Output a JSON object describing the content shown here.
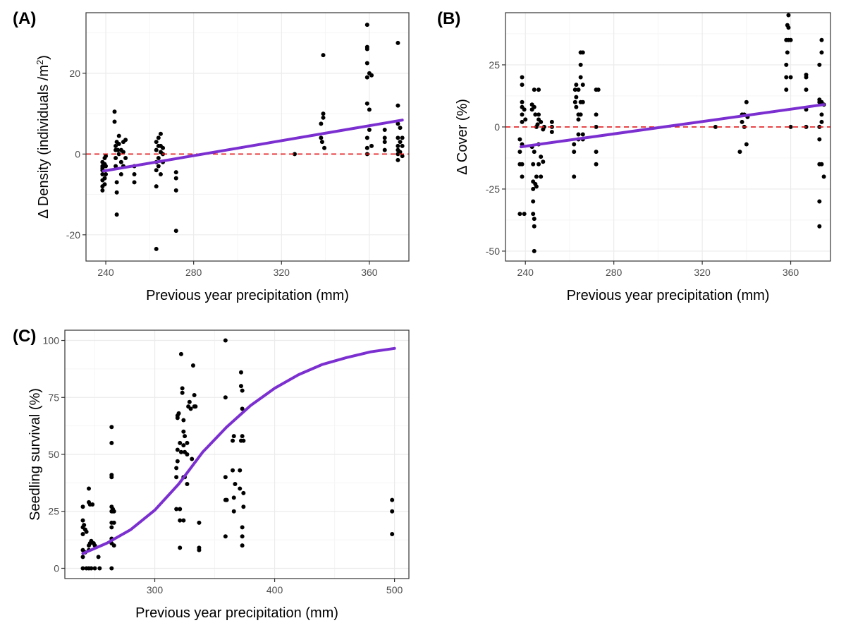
{
  "figure": {
    "panels": [
      "(A)",
      "(B)",
      "(C)"
    ]
  },
  "colors": {
    "points": "#000000",
    "fit_line": "#7b2fd0",
    "reference_line": "#e31a1c",
    "grid_major": "#ebebeb",
    "grid_minor": "#f5f5f5",
    "panel_border": "#333333"
  },
  "chart_data": [
    {
      "panel": "(A)",
      "type": "scatter",
      "xlabel": "Previous year precipitation (mm)",
      "ylabel_parts": [
        "Δ Density (individuals /m",
        "2",
        ")"
      ],
      "xlim": [
        231,
        378
      ],
      "ylim": [
        -26.5,
        35
      ],
      "xticks": [
        240,
        280,
        320,
        360
      ],
      "yticks": [
        -20,
        0,
        20
      ],
      "grid": true,
      "reference_line_y": 0,
      "fit_line": [
        [
          239,
          -4.2
        ],
        [
          375,
          8.4
        ]
      ],
      "points": [
        [
          238.5,
          -2
        ],
        [
          238.5,
          -3
        ],
        [
          238.5,
          -4
        ],
        [
          238.5,
          -5
        ],
        [
          238.5,
          -6.5
        ],
        [
          238.5,
          -8
        ],
        [
          238.5,
          -9
        ],
        [
          238.5,
          -3.5
        ],
        [
          239.5,
          -1
        ],
        [
          239.5,
          -2.5
        ],
        [
          239.5,
          -6
        ],
        [
          239.5,
          -7.5
        ],
        [
          240,
          -0.5
        ],
        [
          240,
          -3
        ],
        [
          240,
          -5
        ],
        [
          244,
          10.5
        ],
        [
          244,
          8
        ],
        [
          244.5,
          2
        ],
        [
          244.5,
          1
        ],
        [
          244.5,
          -1
        ],
        [
          244.5,
          -3
        ],
        [
          245,
          3
        ],
        [
          245,
          -7
        ],
        [
          245,
          -9.5
        ],
        [
          245,
          -15
        ],
        [
          245.5,
          1
        ],
        [
          246,
          4.5
        ],
        [
          246,
          2.5
        ],
        [
          246,
          0
        ],
        [
          247,
          1
        ],
        [
          247,
          -2
        ],
        [
          247,
          -5
        ],
        [
          248,
          3
        ],
        [
          248,
          0.5
        ],
        [
          248,
          -3
        ],
        [
          249,
          3.5
        ],
        [
          249,
          -1
        ],
        [
          253,
          -3
        ],
        [
          253,
          -5
        ],
        [
          253,
          -7
        ],
        [
          263,
          3
        ],
        [
          263,
          1
        ],
        [
          263,
          -2
        ],
        [
          263,
          -4
        ],
        [
          263,
          -8
        ],
        [
          263,
          -23.5
        ],
        [
          264,
          4
        ],
        [
          264,
          2
        ],
        [
          264,
          -1
        ],
        [
          264,
          -3
        ],
        [
          265,
          5
        ],
        [
          265,
          2
        ],
        [
          265,
          0.5
        ],
        [
          265,
          -5
        ],
        [
          266,
          1.5
        ],
        [
          266,
          0
        ],
        [
          266,
          -2
        ],
        [
          272,
          -4.5
        ],
        [
          272,
          -6
        ],
        [
          272,
          -9
        ],
        [
          272,
          -19
        ],
        [
          326,
          0
        ],
        [
          338,
          7.5
        ],
        [
          338,
          4
        ],
        [
          338.5,
          3
        ],
        [
          339,
          24.5
        ],
        [
          339,
          10
        ],
        [
          339,
          9
        ],
        [
          339.5,
          1.5
        ],
        [
          359,
          32
        ],
        [
          359,
          26.5
        ],
        [
          359,
          26
        ],
        [
          359,
          22.5
        ],
        [
          359,
          19
        ],
        [
          359,
          12.5
        ],
        [
          359,
          4
        ],
        [
          359,
          1.5
        ],
        [
          359,
          0
        ],
        [
          360,
          20
        ],
        [
          360,
          11
        ],
        [
          360,
          6
        ],
        [
          361,
          19.5
        ],
        [
          361,
          2
        ],
        [
          367,
          6
        ],
        [
          367,
          4
        ],
        [
          367,
          3
        ],
        [
          367,
          1
        ],
        [
          373,
          27.5
        ],
        [
          373,
          12
        ],
        [
          373,
          7.5
        ],
        [
          373,
          4
        ],
        [
          373,
          2
        ],
        [
          373,
          1
        ],
        [
          373,
          0
        ],
        [
          373,
          -1.5
        ],
        [
          374,
          6.5
        ],
        [
          374,
          3
        ],
        [
          374,
          0.5
        ],
        [
          375,
          4
        ],
        [
          375,
          2
        ],
        [
          375,
          -0.5
        ]
      ]
    },
    {
      "panel": "(B)",
      "type": "scatter",
      "xlabel": "Previous year precipitation (mm)",
      "ylabel": "Δ Cover (%)",
      "xlim": [
        231,
        378
      ],
      "ylim": [
        -54,
        46
      ],
      "xticks": [
        240,
        280,
        320,
        360
      ],
      "yticks": [
        -50,
        -25,
        0,
        25
      ],
      "grid": true,
      "reference_line_y": 0,
      "fit_line": [
        [
          238,
          -8
        ],
        [
          375,
          9
        ]
      ],
      "points": [
        [
          237.5,
          -5
        ],
        [
          237.5,
          -10
        ],
        [
          237.5,
          -15
        ],
        [
          237.5,
          -35
        ],
        [
          238.5,
          20
        ],
        [
          238.5,
          17
        ],
        [
          238.5,
          10
        ],
        [
          238.5,
          8
        ],
        [
          238.5,
          5
        ],
        [
          238.5,
          2
        ],
        [
          238.5,
          -7
        ],
        [
          238.5,
          -15
        ],
        [
          238.5,
          -20
        ],
        [
          239.5,
          -35
        ],
        [
          239.5,
          7
        ],
        [
          240,
          3
        ],
        [
          243,
          9
        ],
        [
          243,
          7
        ],
        [
          243,
          -8
        ],
        [
          243.5,
          -15
        ],
        [
          243.5,
          -22
        ],
        [
          243.5,
          -25
        ],
        [
          243.5,
          -30
        ],
        [
          243.5,
          -35
        ],
        [
          244,
          15
        ],
        [
          244,
          8
        ],
        [
          244,
          -10
        ],
        [
          244,
          -37
        ],
        [
          244,
          -40
        ],
        [
          244,
          -50
        ],
        [
          244.5,
          5
        ],
        [
          244.5,
          -23
        ],
        [
          245,
          0
        ],
        [
          245,
          -24
        ],
        [
          245,
          -20
        ],
        [
          245.5,
          1
        ],
        [
          246,
          15
        ],
        [
          246,
          5
        ],
        [
          246,
          3
        ],
        [
          246,
          -7
        ],
        [
          246,
          -15
        ],
        [
          247,
          2
        ],
        [
          247,
          -12
        ],
        [
          247,
          -20
        ],
        [
          248,
          -1
        ],
        [
          248,
          -14
        ],
        [
          248.5,
          0
        ],
        [
          252,
          2
        ],
        [
          252,
          0
        ],
        [
          252,
          -2
        ],
        [
          262,
          -20
        ],
        [
          262,
          -7
        ],
        [
          262,
          -10
        ],
        [
          262.5,
          15
        ],
        [
          262.5,
          10
        ],
        [
          263,
          17
        ],
        [
          263,
          12
        ],
        [
          263,
          8
        ],
        [
          264,
          15
        ],
        [
          264,
          5
        ],
        [
          264,
          3
        ],
        [
          264,
          -3
        ],
        [
          264,
          -5
        ],
        [
          265,
          30
        ],
        [
          265,
          25
        ],
        [
          265,
          20
        ],
        [
          265,
          10
        ],
        [
          265,
          5
        ],
        [
          266,
          30
        ],
        [
          266,
          17
        ],
        [
          266,
          10
        ],
        [
          266,
          -3
        ],
        [
          266,
          -5
        ],
        [
          272,
          15
        ],
        [
          272,
          5
        ],
        [
          272,
          0
        ],
        [
          272,
          -10
        ],
        [
          272,
          -15
        ],
        [
          273,
          15
        ],
        [
          326,
          0
        ],
        [
          337,
          -10
        ],
        [
          338,
          5
        ],
        [
          338,
          2
        ],
        [
          339,
          5
        ],
        [
          339,
          0
        ],
        [
          340,
          10
        ],
        [
          340,
          -7
        ],
        [
          340.5,
          4
        ],
        [
          358,
          15
        ],
        [
          358,
          20
        ],
        [
          358,
          25
        ],
        [
          358,
          35
        ],
        [
          358.5,
          41
        ],
        [
          358.5,
          30
        ],
        [
          359,
          45
        ],
        [
          359,
          40
        ],
        [
          359,
          35
        ],
        [
          360,
          35
        ],
        [
          360,
          20
        ],
        [
          360,
          0
        ],
        [
          367,
          21
        ],
        [
          367,
          20
        ],
        [
          367,
          15
        ],
        [
          367,
          7
        ],
        [
          367,
          0
        ],
        [
          373,
          25
        ],
        [
          373,
          11
        ],
        [
          373,
          10
        ],
        [
          373,
          0
        ],
        [
          373,
          -5
        ],
        [
          373,
          -15
        ],
        [
          373,
          -30
        ],
        [
          373,
          -40
        ],
        [
          374,
          35
        ],
        [
          374,
          30
        ],
        [
          374,
          10
        ],
        [
          374,
          5
        ],
        [
          374,
          2
        ],
        [
          374,
          -15
        ],
        [
          375,
          9
        ],
        [
          375,
          -20
        ]
      ]
    },
    {
      "panel": "(C)",
      "type": "scatter",
      "xlabel": "Previous year precipitation (mm)",
      "ylabel": "Seedling survival (%)",
      "xlim": [
        225,
        512
      ],
      "ylim": [
        -4.5,
        104.5
      ],
      "xticks": [
        300,
        400,
        500
      ],
      "yticks": [
        0,
        25,
        50,
        75,
        100
      ],
      "grid": true,
      "fit_curve": [
        [
          240,
          6.5
        ],
        [
          260,
          11
        ],
        [
          280,
          17
        ],
        [
          300,
          25.5
        ],
        [
          320,
          37
        ],
        [
          340,
          51
        ],
        [
          360,
          62
        ],
        [
          380,
          71.5
        ],
        [
          400,
          79
        ],
        [
          420,
          85
        ],
        [
          440,
          89.5
        ],
        [
          460,
          92.5
        ],
        [
          480,
          95
        ],
        [
          500,
          96.5
        ]
      ],
      "points": [
        [
          240,
          27
        ],
        [
          240,
          21
        ],
        [
          240,
          18
        ],
        [
          240,
          15
        ],
        [
          240,
          8
        ],
        [
          240,
          5
        ],
        [
          240,
          0
        ],
        [
          241,
          19
        ],
        [
          242,
          17
        ],
        [
          242,
          7
        ],
        [
          243,
          16
        ],
        [
          243,
          0
        ],
        [
          245,
          35
        ],
        [
          245,
          29
        ],
        [
          245,
          10
        ],
        [
          245,
          8
        ],
        [
          245,
          0
        ],
        [
          246,
          28
        ],
        [
          246,
          11
        ],
        [
          247,
          12
        ],
        [
          247,
          0
        ],
        [
          248,
          28
        ],
        [
          249,
          11
        ],
        [
          250,
          10
        ],
        [
          250,
          0
        ],
        [
          253,
          5
        ],
        [
          254,
          0
        ],
        [
          264,
          62
        ],
        [
          264,
          55
        ],
        [
          264,
          41
        ],
        [
          264,
          40
        ],
        [
          264,
          27
        ],
        [
          264,
          25
        ],
        [
          264,
          20
        ],
        [
          264,
          18
        ],
        [
          264,
          13
        ],
        [
          264,
          11
        ],
        [
          264,
          0
        ],
        [
          265,
          26
        ],
        [
          265,
          25
        ],
        [
          266,
          25
        ],
        [
          266,
          20
        ],
        [
          266,
          10
        ],
        [
          318,
          40
        ],
        [
          318,
          26
        ],
        [
          318,
          44
        ],
        [
          319,
          47
        ],
        [
          319,
          52
        ],
        [
          319,
          66
        ],
        [
          319,
          67
        ],
        [
          320,
          68
        ],
        [
          321,
          9
        ],
        [
          321,
          21
        ],
        [
          321,
          26
        ],
        [
          321,
          55
        ],
        [
          322,
          51
        ],
        [
          322,
          94
        ],
        [
          323,
          79
        ],
        [
          323,
          77
        ],
        [
          324,
          65
        ],
        [
          324,
          60
        ],
        [
          324,
          54
        ],
        [
          324,
          40
        ],
        [
          324,
          21
        ],
        [
          325,
          40
        ],
        [
          325,
          51
        ],
        [
          325,
          58
        ],
        [
          327,
          55
        ],
        [
          327,
          50
        ],
        [
          327,
          37
        ],
        [
          328,
          71
        ],
        [
          329,
          73
        ],
        [
          330,
          70
        ],
        [
          331,
          48
        ],
        [
          332,
          89
        ],
        [
          333,
          76
        ],
        [
          333,
          71
        ],
        [
          334,
          71
        ],
        [
          337,
          20
        ],
        [
          337,
          9
        ],
        [
          337,
          8
        ],
        [
          359,
          100
        ],
        [
          359,
          75
        ],
        [
          359,
          40
        ],
        [
          359,
          30
        ],
        [
          359,
          14
        ],
        [
          360,
          30
        ],
        [
          365,
          56
        ],
        [
          365,
          43
        ],
        [
          366,
          58
        ],
        [
          366,
          25
        ],
        [
          366,
          31
        ],
        [
          367,
          37
        ],
        [
          371,
          43
        ],
        [
          371,
          35
        ],
        [
          372,
          56
        ],
        [
          372,
          86
        ],
        [
          372,
          80
        ],
        [
          373,
          78
        ],
        [
          373,
          70
        ],
        [
          373,
          58
        ],
        [
          373,
          18
        ],
        [
          373,
          14
        ],
        [
          373,
          10
        ],
        [
          374,
          33
        ],
        [
          374,
          27
        ],
        [
          374,
          56
        ],
        [
          498,
          30
        ],
        [
          498,
          25
        ],
        [
          498,
          15
        ]
      ]
    }
  ]
}
